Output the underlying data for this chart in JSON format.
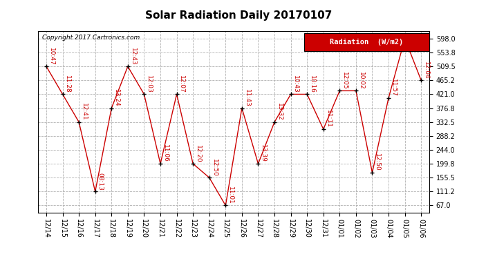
{
  "title": "Solar Radiation Daily 20170107",
  "copyright_text": "Copyright 2017 Cartronics.com",
  "legend_label": "Radiation  (W/m2)",
  "x_labels": [
    "12/14",
    "12/15",
    "12/16",
    "12/17",
    "12/18",
    "12/19",
    "12/20",
    "12/21",
    "12/22",
    "12/23",
    "12/24",
    "12/25",
    "12/26",
    "12/27",
    "12/28",
    "12/29",
    "12/30",
    "12/31",
    "01/01",
    "01/02",
    "01/03",
    "01/04",
    "01/05",
    "01/06"
  ],
  "y_values": [
    509.5,
    421.0,
    332.5,
    111.2,
    376.8,
    509.5,
    421.0,
    199.8,
    421.0,
    199.8,
    155.5,
    67.0,
    376.8,
    199.8,
    332.5,
    421.0,
    421.0,
    310.0,
    432.0,
    432.0,
    171.5,
    409.0,
    598.0,
    465.2
  ],
  "time_labels": [
    "10:47",
    "11:28",
    "12:41",
    "08:13",
    "13:24",
    "12:43",
    "12:03",
    "11:06",
    "12:07",
    "12:20",
    "12:50",
    "11:01",
    "11:43",
    "13:39",
    "13:32",
    "10:43",
    "10:16",
    "11:11",
    "12:05",
    "10:02",
    "12:50",
    "11:57",
    "",
    "12:04"
  ],
  "y_ticks": [
    67.0,
    111.2,
    155.5,
    199.8,
    244.0,
    288.2,
    332.5,
    376.8,
    421.0,
    465.2,
    509.5,
    553.8,
    598.0
  ],
  "y_min": 45.0,
  "y_max": 622.0,
  "line_color": "#cc0000",
  "bg_color": "#ffffff",
  "grid_color": "#b0b0b0",
  "title_fontsize": 11,
  "tick_fontsize": 7,
  "annotation_fontsize": 6.5,
  "copyright_fontsize": 6.5,
  "legend_bg": "#cc0000",
  "legend_text_color": "#ffffff",
  "legend_fontsize": 7.5
}
